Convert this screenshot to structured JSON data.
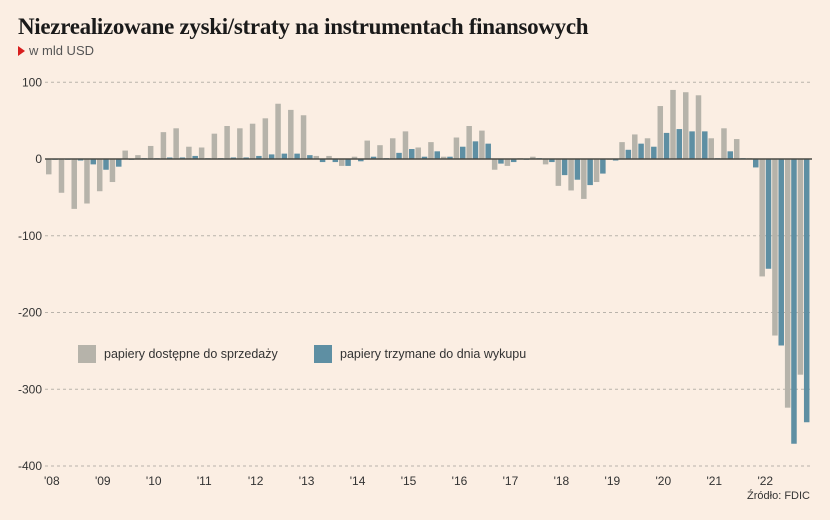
{
  "chart_data": {
    "type": "bar",
    "title": "Niezrealizowane zyski/straty na instrumentach finansowych",
    "subtitle": "w mld USD",
    "source": "Źródło: FDIC",
    "ylim": [
      -400,
      100
    ],
    "yticks": [
      100,
      0,
      -100,
      -200,
      -300,
      -400
    ],
    "ytick_labels": [
      "100",
      "0",
      "-100",
      "-200",
      "-300",
      "-400"
    ],
    "xtick_labels": [
      "'08",
      "'09",
      "'10",
      "'11",
      "'12",
      "'13",
      "'14",
      "'15",
      "'16",
      "'17",
      "'18",
      "'19",
      "'20",
      "'21",
      "'22"
    ],
    "x_unit": "quarter, 2008Q1–2022Q4",
    "grid": true,
    "legend_position": "center-left",
    "colors": {
      "available_for_sale": "#b6b3aa",
      "held_to_maturity": "#5e8fa3",
      "background": "#fbeee3"
    },
    "series": [
      {
        "name": "papiery dostępne do sprzedaży",
        "key": "available_for_sale",
        "values": [
          -20,
          -44,
          -65,
          -58,
          -42,
          -30,
          11,
          5,
          17,
          35,
          40,
          16,
          15,
          33,
          43,
          40,
          46,
          53,
          72,
          64,
          57,
          4,
          4,
          -9,
          3,
          24,
          18,
          27,
          36,
          15,
          22,
          3,
          28,
          43,
          37,
          -14,
          -9,
          0,
          3,
          -7,
          -35,
          -41,
          -52,
          -30,
          -1,
          22,
          32,
          27,
          69,
          90,
          87,
          83,
          27,
          40,
          26,
          1,
          -153,
          -230,
          -324,
          -281
        ]
      },
      {
        "name": "papiery trzymane do dnia wykupu",
        "key": "held_to_maturity",
        "values": [
          -1,
          -1,
          -2,
          -7,
          -14,
          -10,
          -1,
          0,
          1,
          2,
          2,
          4,
          1,
          1,
          2,
          2,
          4,
          6,
          7,
          7,
          5,
          -4,
          -4,
          -9,
          -3,
          3,
          1,
          8,
          13,
          3,
          10,
          3,
          16,
          23,
          20,
          -6,
          -4,
          -1,
          0,
          -4,
          -21,
          -27,
          -34,
          -19,
          -2,
          12,
          20,
          16,
          34,
          39,
          36,
          36,
          0,
          10,
          1,
          -11,
          -143,
          -243,
          -371,
          -343
        ]
      }
    ]
  }
}
